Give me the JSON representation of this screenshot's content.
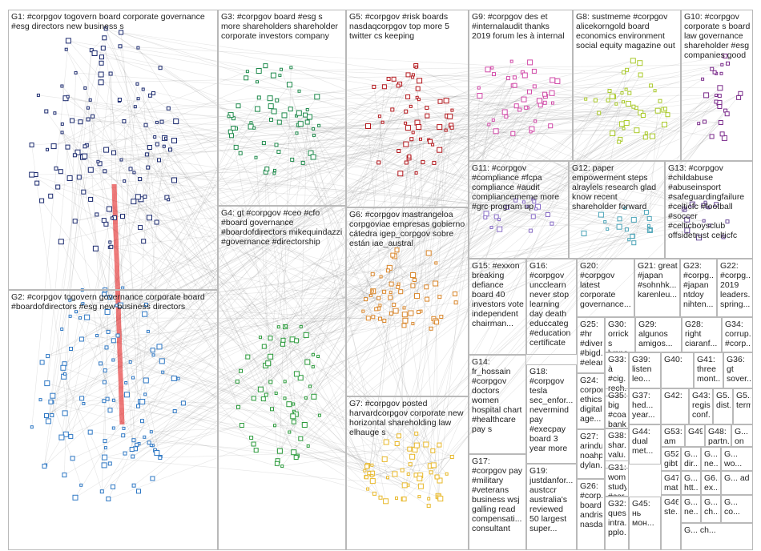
{
  "title": "",
  "colors": {
    "G1": "#1b2a6e",
    "G2": "#2f78c4",
    "G3": "#1f8a4c",
    "G4": "#2a9a3a",
    "G5": "#b3171c",
    "G6": "#d9862a",
    "G7": "#e8b82a",
    "G8": "#a9c92a",
    "G9": "#d14aa8",
    "G10": "#7a2a8a",
    "G11": "#8a6fc7",
    "G12": "#4aa3b7",
    "G13": "#6b4c9a",
    "other": "#7a7a7a",
    "edge": "#6e6e6e",
    "highlight_edge": "#e01010"
  },
  "groups": [
    {
      "id": "G1",
      "label": "G1: #corpgov togovern board corporate governance #esg directors new business s"
    },
    {
      "id": "G2",
      "label": "G2: #corpgov togovern governance corporate board #boardofdirectors #esg new business directors"
    },
    {
      "id": "G3",
      "label": "G3: #corpgov board #esg s more shareholders shareholder corporate investors company"
    },
    {
      "id": "G4",
      "label": "G4: gt #corpgov #ceo #cfo #board governance #boardofdirectors mikequindazzi #governance #directorship"
    },
    {
      "id": "G5",
      "label": "G5: #corpgov #risk boards nasdaqcorpgov top more 5 twitter cs keeping"
    },
    {
      "id": "G6",
      "label": "G6: #corpgov mastrangeloa corpgoviae empresas gobierno cátedra igep_corpgov sobre están iae_austral"
    },
    {
      "id": "G7",
      "label": "G7: #corpgov posted harvardcorpgov corporate new horizontal shareholding law elhauge s"
    },
    {
      "id": "G8",
      "label": "G8: sustmeme #corpgov alicekorngold board economics environment social equity magazine out"
    },
    {
      "id": "G9",
      "label": "G9: #corpgov des et #internalaudit thanks 2019 forum les à internal"
    },
    {
      "id": "G10",
      "label": "G10: #corpgov corporate s board law governance shareholder #esg companies good"
    },
    {
      "id": "G11",
      "label": "G11: #corpgov #compliance #fcpa compliance #audit compliancememe more #grc program up"
    },
    {
      "id": "G12",
      "label": "G12: paper empowerment steps alraylels research glad know recent shareholder forward"
    },
    {
      "id": "G13",
      "label": "G13: #corpgov #childabuse #abuseinsport #safeguardingfailure #celticfc #football #soccer #celticboysclub offsidetrust celticfc"
    },
    {
      "id": "G14",
      "label": "G14: fr_hossain #corpgov doctors women hospital chart #healthcare pay s"
    },
    {
      "id": "G15",
      "label": "G15: #exxon breaking defiance board 40 investors vote independent chairman..."
    },
    {
      "id": "G16",
      "label": "G16: #corpgov uncclearn never stop learning day death educcateg #education certificate"
    },
    {
      "id": "G17",
      "label": "G17: #corpgov pay #military #veterans business wsj galling read compensati... consultant"
    },
    {
      "id": "G18",
      "label": "G18: #corpgov tesla sec_enfor... nevermind pay #execpay board 3 year more"
    },
    {
      "id": "G19",
      "label": "G19: justdanfor... austccr australia's reviewed 50 largest super..."
    },
    {
      "id": "G20",
      "label": "G20: #corpgov latest corporate governance..."
    },
    {
      "id": "G21",
      "label": "G21: great #japan #sohnhk... karenleu..."
    },
    {
      "id": "G22",
      "label": "G22: #corpg... 2019 leaders... spring..."
    },
    {
      "id": "G23",
      "label": "G23: #corpg... #japan ntdoy nihten..."
    },
    {
      "id": "G24",
      "label": "G24: corpor... ethics digital age..."
    },
    {
      "id": "G25",
      "label": "G25: #hr #diver... #bigd... #elear..."
    },
    {
      "id": "G26",
      "label": "G26: #corp... board andris... nasda..."
    },
    {
      "id": "G27",
      "label": "G27: arindu... noahp... dylan..."
    },
    {
      "id": "G28",
      "label": "G28: right ciaranf..."
    },
    {
      "id": "G29",
      "label": "G29: algunos amigos..."
    },
    {
      "id": "G30",
      "label": "G30: orrick s lynne..."
    },
    {
      "id": "G31",
      "label": "G31: wom... study #cor..."
    },
    {
      "id": "G32",
      "label": "G32: ques... intra... pplo..."
    },
    {
      "id": "G33",
      "label": "G33: à #cig... rech..."
    },
    {
      "id": "G34",
      "label": "G34: corrup... #corp..."
    },
    {
      "id": "G35",
      "label": "G35: big #coal bank..."
    },
    {
      "id": "G36",
      "label": "G36: gt sover..."
    },
    {
      "id": "G37",
      "label": "G37: hed... year..."
    },
    {
      "id": "G38",
      "label": "G38: shar... valu..."
    },
    {
      "id": "G39",
      "label": "G39: listen leo..."
    },
    {
      "id": "G40",
      "label": "G40:"
    },
    {
      "id": "G41",
      "label": "G41: three mont..."
    },
    {
      "id": "G42",
      "label": "G42:"
    },
    {
      "id": "G43",
      "label": "G43: regis... conf..."
    },
    {
      "id": "G44",
      "label": "G44: dual met..."
    },
    {
      "id": "G45",
      "label": "G45: нь мон..."
    },
    {
      "id": "G46",
      "label": "G46: ste..."
    },
    {
      "id": "G47",
      "label": "G47: mat"
    },
    {
      "id": "G48",
      "label": "G48: partn..."
    },
    {
      "id": "G49",
      "label": "G49"
    },
    {
      "id": "G50",
      "label": "G5... dist..."
    },
    {
      "id": "G51",
      "label": "G5... term..."
    },
    {
      "id": "G52",
      "label": "G52: gibt"
    },
    {
      "id": "G53",
      "label": "G53: am"
    },
    {
      "id": "G54",
      "label": "G... on"
    },
    {
      "id": "G55",
      "label": "G... dir..."
    },
    {
      "id": "G56",
      "label": "G... ne..."
    },
    {
      "id": "G57",
      "label": "G... wo..."
    },
    {
      "id": "G58",
      "label": "G... ad"
    },
    {
      "id": "G59",
      "label": "G... htt..."
    },
    {
      "id": "G60",
      "label": "G6... ex..."
    },
    {
      "id": "G61",
      "label": "G... ne..."
    },
    {
      "id": "G62",
      "label": "G... ch..."
    },
    {
      "id": "G63",
      "label": "G... co..."
    },
    {
      "id": "G64",
      "label": "G... ch..."
    }
  ]
}
